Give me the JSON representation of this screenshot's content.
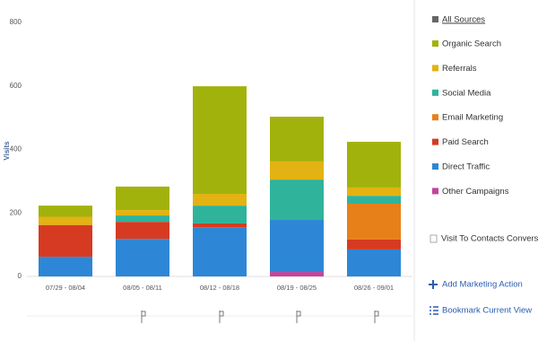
{
  "chart_data": {
    "type": "stacked-bar",
    "y_label": "Visits",
    "categories": [
      "07/29 - 08/04",
      "08/05 - 08/11",
      "08/12 - 08/18",
      "08/19 - 08/25",
      "08/26 - 09/01"
    ],
    "series": [
      {
        "name": "Organic Search",
        "color": "#a2b20c",
        "values": [
          35,
          74,
          339,
          141,
          144
        ]
      },
      {
        "name": "Referrals",
        "color": "#e2b312",
        "values": [
          26,
          17,
          37,
          57,
          26
        ]
      },
      {
        "name": "Social Media",
        "color": "#2fb39b",
        "values": [
          0,
          20,
          56,
          127,
          25
        ]
      },
      {
        "name": "Email Marketing",
        "color": "#e8801a",
        "values": [
          0,
          0,
          0,
          0,
          113
        ]
      },
      {
        "name": "Paid Search",
        "color": "#d63b22",
        "values": [
          100,
          54,
          12,
          0,
          31
        ]
      },
      {
        "name": "Direct Traffic",
        "color": "#2d87d6",
        "values": [
          62,
          118,
          155,
          164,
          85
        ]
      },
      {
        "name": "Other Campaigns",
        "color": "#c2449c",
        "values": [
          0,
          0,
          0,
          14,
          0
        ]
      }
    ],
    "ylim": [
      0,
      800
    ],
    "yticks": [
      0,
      200,
      400,
      600,
      800
    ],
    "grid": false
  },
  "sidebar": {
    "all_sources": "All Sources",
    "all_sources_color": "#666666",
    "conversion": "Visit To Contacts Conversion",
    "add_action": "Add Marketing Action",
    "bookmark": "Bookmark Current View"
  }
}
